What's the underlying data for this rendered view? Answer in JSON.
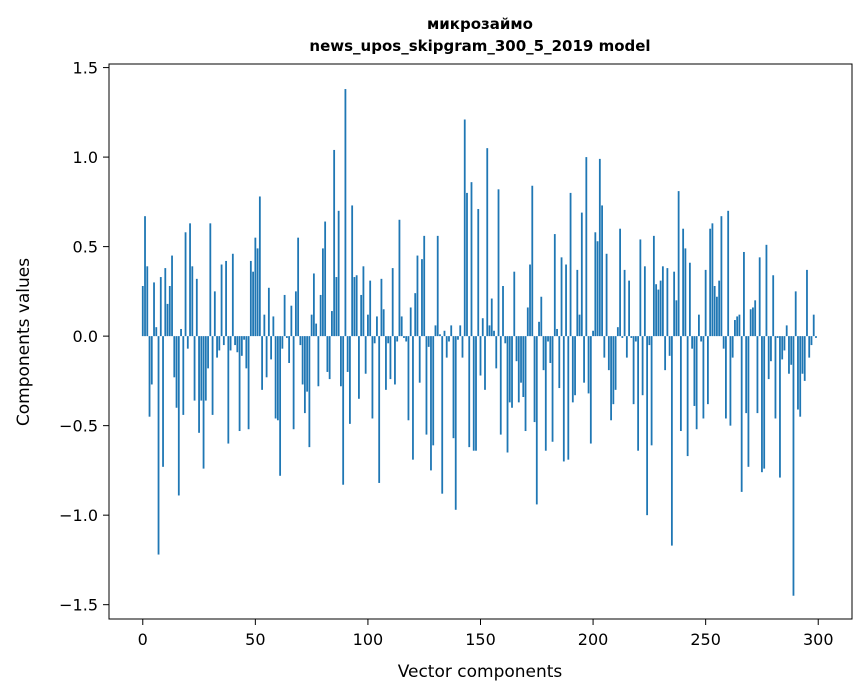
{
  "chart_data": {
    "type": "bar",
    "title": "микрозаймо",
    "subtitle": "news_upos_skipgram_300_5_2019 model",
    "xlabel": "Vector components",
    "ylabel": "Components values",
    "xlim": [
      -15,
      315
    ],
    "ylim": [
      -1.58,
      1.52
    ],
    "xticks": [
      0,
      50,
      100,
      150,
      200,
      250,
      300
    ],
    "yticks": [
      -1.5,
      -1.0,
      -0.5,
      0.0,
      0.5,
      1.0,
      1.5
    ],
    "ytick_labels": [
      "−1.5",
      "−1.0",
      "−0.5",
      "0.0",
      "0.5",
      "1.0",
      "1.5"
    ],
    "bar_color": "#1f77b4",
    "grid": false,
    "values": [
      0.28,
      0.67,
      0.39,
      -0.45,
      -0.27,
      0.3,
      0.05,
      -1.22,
      0.33,
      -0.73,
      0.38,
      0.18,
      0.28,
      0.45,
      -0.23,
      -0.4,
      -0.89,
      0.04,
      -0.44,
      0.58,
      -0.07,
      0.63,
      0.39,
      -0.36,
      0.32,
      -0.54,
      -0.36,
      -0.74,
      -0.36,
      -0.18,
      0.63,
      -0.44,
      0.25,
      -0.12,
      -0.08,
      0.4,
      -0.05,
      0.42,
      -0.6,
      -0.08,
      0.46,
      -0.05,
      -0.09,
      -0.53,
      -0.11,
      -0.02,
      -0.18,
      -0.52,
      0.42,
      0.36,
      0.55,
      0.49,
      0.78,
      -0.3,
      0.12,
      -0.23,
      0.27,
      -0.13,
      0.11,
      -0.46,
      -0.47,
      -0.78,
      -0.07,
      0.23,
      -0.01,
      -0.15,
      0.17,
      -0.52,
      0.25,
      0.55,
      -0.05,
      -0.27,
      -0.43,
      -0.31,
      -0.62,
      0.12,
      0.35,
      0.07,
      -0.28,
      0.23,
      0.49,
      0.64,
      -0.2,
      -0.24,
      0.14,
      1.04,
      0.33,
      0.7,
      -0.28,
      -0.83,
      1.38,
      -0.2,
      -0.49,
      0.73,
      0.33,
      0.34,
      -0.35,
      0.23,
      0.39,
      -0.21,
      0.12,
      0.31,
      -0.46,
      -0.04,
      0.11,
      -0.82,
      0.32,
      0.15,
      -0.3,
      -0.04,
      -0.24,
      0.38,
      -0.27,
      -0.03,
      0.65,
      0.11,
      -0.01,
      -0.03,
      -0.47,
      0.16,
      -0.69,
      0.24,
      0.45,
      -0.26,
      0.43,
      0.56,
      -0.55,
      -0.06,
      -0.75,
      -0.61,
      0.06,
      0.56,
      0.01,
      -0.88,
      0.03,
      -0.12,
      -0.03,
      0.06,
      -0.57,
      -0.97,
      -0.02,
      0.06,
      -0.12,
      1.21,
      0.8,
      -0.62,
      0.86,
      -0.64,
      -0.64,
      0.71,
      -0.22,
      0.1,
      -0.3,
      1.05,
      0.06,
      0.21,
      0.03,
      -0.18,
      0.82,
      -0.55,
      0.28,
      -0.04,
      -0.65,
      -0.37,
      -0.4,
      0.36,
      -0.14,
      -0.37,
      -0.26,
      -0.34,
      -0.53,
      0.16,
      0.4,
      0.84,
      -0.48,
      -0.94,
      0.08,
      0.22,
      -0.19,
      -0.64,
      -0.03,
      -0.15,
      -0.59,
      0.57,
      0.04,
      -0.29,
      0.44,
      -0.7,
      0.4,
      -0.69,
      0.8,
      -0.37,
      -0.33,
      0.37,
      0.12,
      0.69,
      -0.26,
      1.0,
      -0.32,
      -0.6,
      0.03,
      0.58,
      0.53,
      0.99,
      0.73,
      -0.12,
      0.46,
      -0.19,
      -0.47,
      -0.38,
      -0.3,
      0.05,
      0.6,
      -0.01,
      0.37,
      -0.12,
      0.31,
      -0.01,
      -0.38,
      -0.03,
      -0.64,
      0.54,
      -0.33,
      0.39,
      -1.0,
      -0.05,
      -0.61,
      0.56,
      0.29,
      0.26,
      0.31,
      0.39,
      -0.19,
      0.38,
      -0.11,
      -1.17,
      0.36,
      0.2,
      0.81,
      -0.53,
      0.6,
      0.49,
      -0.67,
      0.41,
      -0.07,
      -0.39,
      -0.52,
      0.12,
      -0.03,
      -0.46,
      0.37,
      -0.38,
      0.6,
      0.63,
      0.28,
      0.22,
      0.31,
      0.67,
      -0.07,
      -0.46,
      0.7,
      -0.5,
      -0.12,
      0.09,
      0.11,
      0.12,
      -0.87,
      0.47,
      -0.43,
      -0.73,
      0.15,
      0.16,
      0.2,
      -0.43,
      0.44,
      -0.76,
      -0.74,
      0.51,
      -0.24,
      -0.14,
      0.34,
      -0.46,
      -0.01,
      -0.79,
      -0.13,
      -0.08,
      0.06,
      -0.21,
      -0.16,
      -1.45,
      0.25,
      -0.41,
      -0.45,
      -0.21,
      -0.25,
      0.37,
      -0.12,
      -0.05,
      0.12,
      -0.01
    ]
  }
}
